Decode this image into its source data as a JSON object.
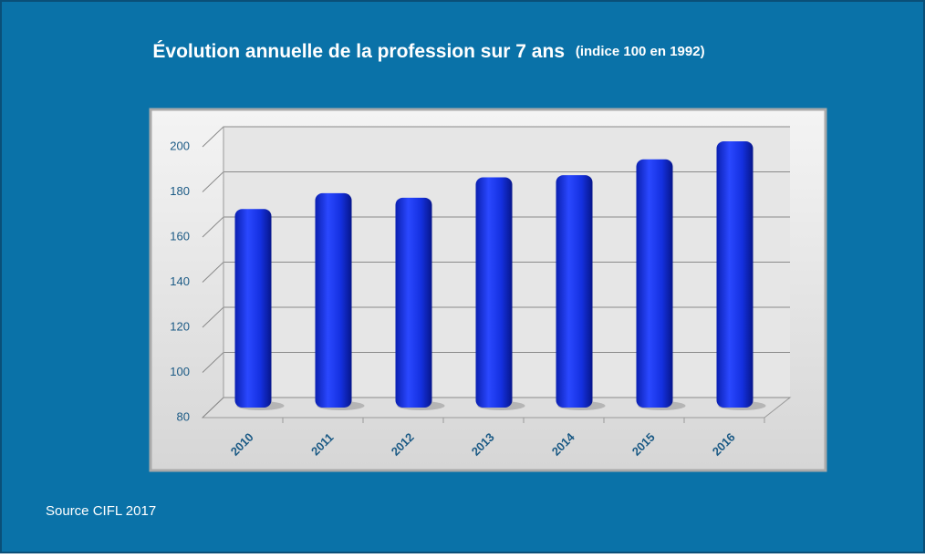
{
  "chart_data": {
    "type": "bar",
    "title": "Évolution annuelle de la profession sur 7 ans",
    "subtitle": "(indice 100 en 1992)",
    "categories": [
      "2010",
      "2011",
      "2012",
      "2013",
      "2014",
      "2015",
      "2016"
    ],
    "values": [
      168,
      175,
      173,
      182,
      183,
      190,
      198
    ],
    "color": "#1530e8",
    "ylim": [
      80,
      200
    ],
    "yticks": [
      80,
      100,
      120,
      140,
      160,
      180,
      200
    ],
    "grid": true,
    "source": "Source  CIFL 2017"
  }
}
